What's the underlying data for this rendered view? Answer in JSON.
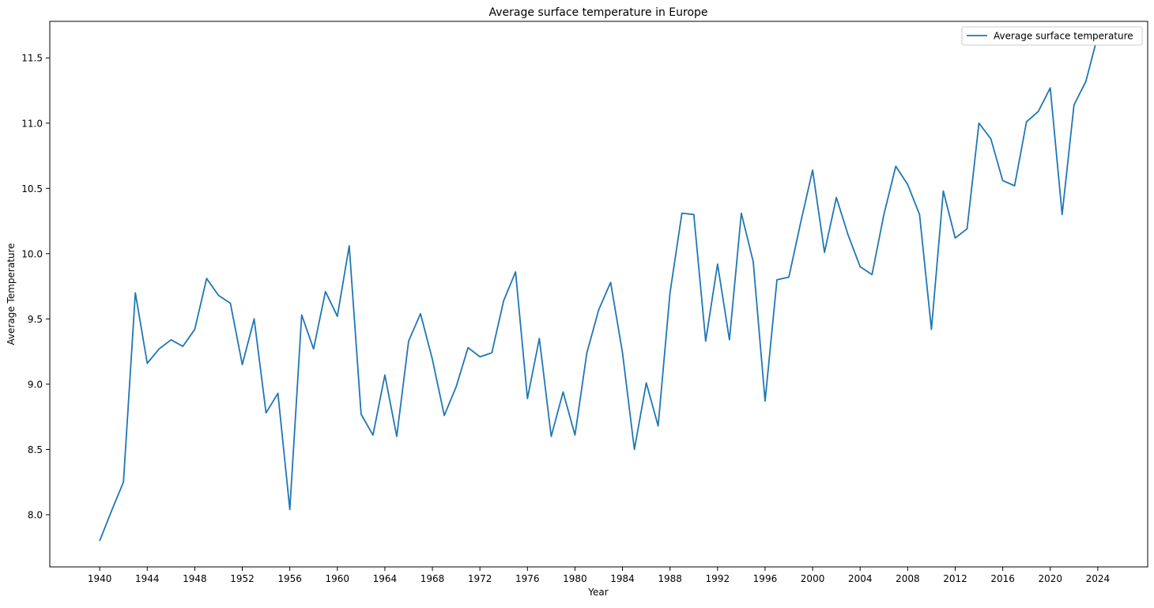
{
  "chart_data": {
    "type": "line",
    "title": "Average surface temperature in Europe",
    "xlabel": "Year",
    "ylabel": "Average Temperature",
    "xlim": [
      1935.8,
      1928.0
    ],
    "ylim": [
      7.6,
      11.78
    ],
    "x_ticks": [
      1940,
      1944,
      1948,
      1952,
      1956,
      1960,
      1964,
      1968,
      1972,
      1976,
      1980,
      1984,
      1988,
      1992,
      1996,
      2000,
      2004,
      2008,
      2012,
      2016,
      2020,
      2024
    ],
    "y_ticks": [
      8.0,
      8.5,
      9.0,
      9.5,
      10.0,
      10.5,
      11.0,
      11.5
    ],
    "y_tick_labels": [
      "8.0",
      "8.5",
      "9.0",
      "9.5",
      "10.0",
      "10.5",
      "11.0",
      "11.5"
    ],
    "grid": false,
    "legend": "top-right",
    "color": "#1f77b4",
    "series": [
      {
        "name": "Average surface temperature",
        "x": [
          1940,
          1941,
          1942,
          1943,
          1944,
          1945,
          1946,
          1947,
          1948,
          1949,
          1950,
          1951,
          1952,
          1953,
          1954,
          1955,
          1956,
          1957,
          1958,
          1959,
          1960,
          1961,
          1962,
          1963,
          1964,
          1965,
          1966,
          1967,
          1968,
          1969,
          1970,
          1971,
          1972,
          1973,
          1974,
          1975,
          1976,
          1977,
          1978,
          1979,
          1980,
          1981,
          1982,
          1983,
          1984,
          1985,
          1986,
          1987,
          1988,
          1989,
          1990,
          1991,
          1992,
          1993,
          1994,
          1995,
          1996,
          1997,
          1998,
          1999,
          2000,
          2001,
          2002,
          2003,
          2004,
          2005,
          2006,
          2007,
          2008,
          2009,
          2010,
          2011,
          2012,
          2013,
          2014,
          2015,
          2016,
          2017,
          2018,
          2019,
          2020,
          2021,
          2022,
          2023,
          2024
        ],
        "values": [
          7.8,
          8.03,
          8.25,
          9.7,
          9.16,
          9.27,
          9.34,
          9.29,
          9.42,
          9.81,
          9.68,
          9.62,
          9.15,
          9.5,
          8.78,
          8.93,
          8.04,
          9.53,
          9.27,
          9.71,
          9.52,
          10.06,
          8.77,
          8.61,
          9.07,
          8.6,
          9.33,
          9.54,
          9.19,
          8.76,
          8.98,
          9.28,
          9.21,
          9.24,
          9.64,
          9.86,
          8.89,
          9.35,
          8.6,
          8.94,
          8.61,
          9.24,
          9.57,
          9.78,
          9.24,
          8.5,
          9.01,
          8.68,
          9.7,
          10.31,
          10.3,
          9.33,
          9.92,
          9.34,
          10.31,
          9.94,
          8.87,
          9.8,
          9.82,
          10.24,
          10.64,
          10.01,
          10.43,
          10.14,
          9.9,
          9.84,
          10.3,
          10.67,
          10.53,
          10.3,
          9.42,
          10.48,
          10.12,
          10.19,
          11.0,
          10.88,
          10.56,
          10.52,
          11.01,
          11.09,
          11.27,
          10.3,
          11.14,
          11.32,
          11.67
        ]
      }
    ]
  }
}
